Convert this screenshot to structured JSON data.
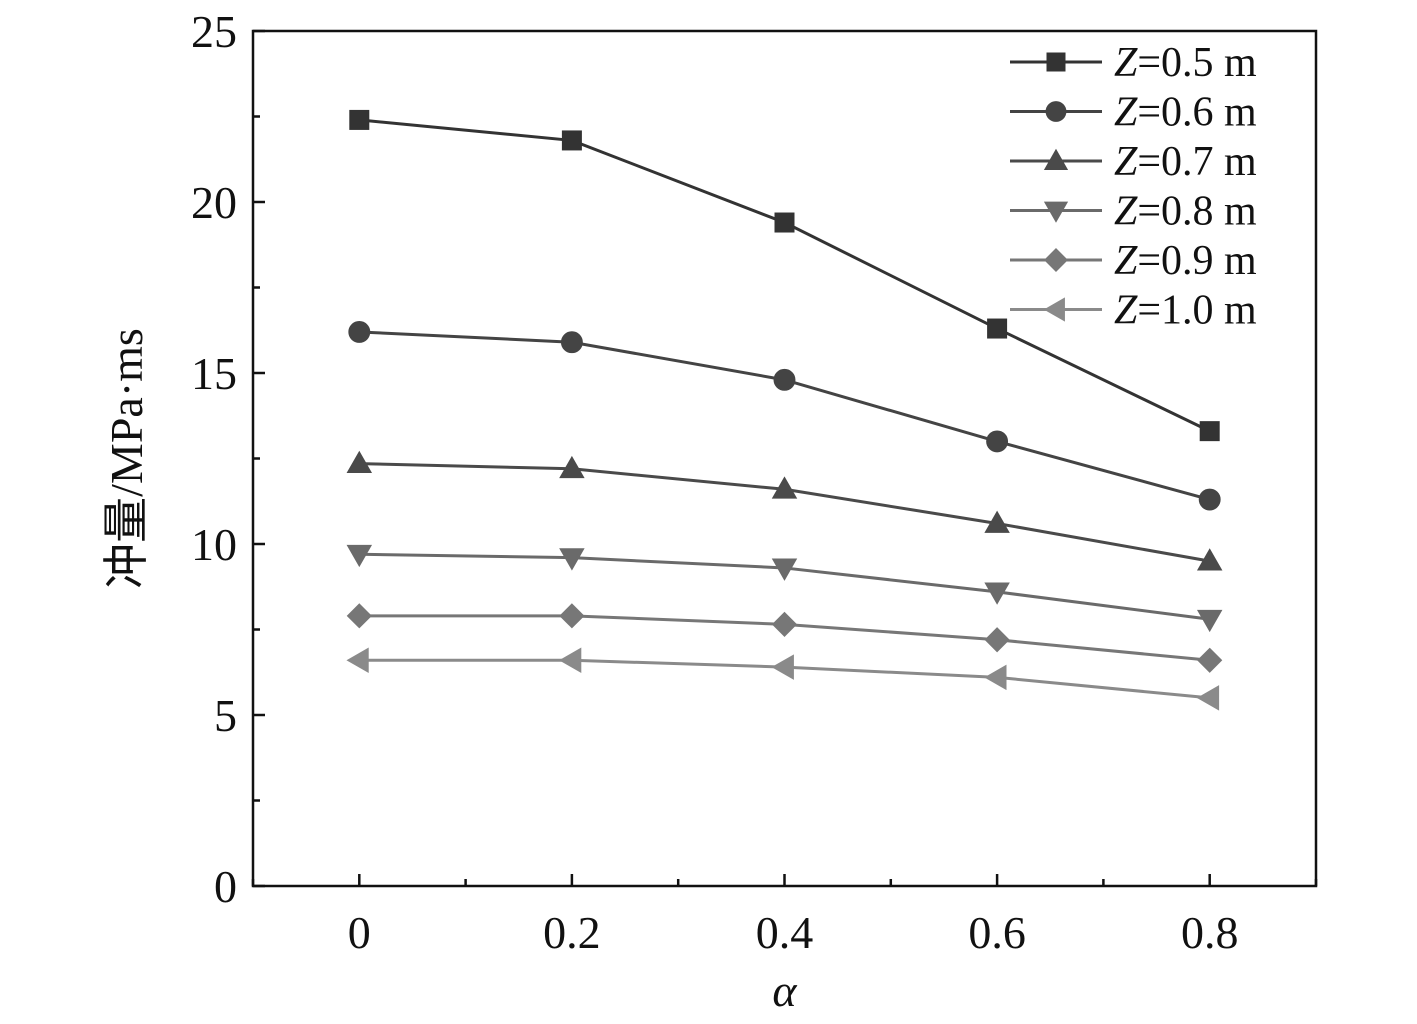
{
  "chart_data": {
    "type": "line",
    "title": "",
    "xlabel": "α",
    "ylabel": "冲量/MPa·ms",
    "x": [
      0,
      0.2,
      0.4,
      0.6,
      0.8
    ],
    "x_tick_labels": [
      "0",
      "0.2",
      "0.4",
      "0.6",
      "0.8"
    ],
    "y_tick_labels": [
      "0",
      "5",
      "10",
      "15",
      "20",
      "25"
    ],
    "xlim": [
      -0.1,
      0.9
    ],
    "ylim": [
      0,
      25
    ],
    "grid": false,
    "legend_position": "top-right",
    "series": [
      {
        "name": "Z=0.5 m",
        "legend_var": "Z",
        "legend_rest": "=0.5 m",
        "marker": "square",
        "color": "#333333",
        "values": [
          22.4,
          21.8,
          19.4,
          16.3,
          13.3
        ]
      },
      {
        "name": "Z=0.6 m",
        "legend_var": "Z",
        "legend_rest": "=0.6 m",
        "marker": "circle",
        "color": "#444444",
        "values": [
          16.2,
          15.9,
          14.8,
          13.0,
          11.3
        ]
      },
      {
        "name": "Z=0.7 m",
        "legend_var": "Z",
        "legend_rest": "=0.7 m",
        "marker": "triangle-up",
        "color": "#4a4a4a",
        "values": [
          12.35,
          12.2,
          11.6,
          10.6,
          9.5
        ]
      },
      {
        "name": "Z=0.8 m",
        "legend_var": "Z",
        "legend_rest": "=0.8 m",
        "marker": "triangle-down",
        "color": "#6a6a6a",
        "values": [
          9.7,
          9.6,
          9.3,
          8.6,
          7.8
        ]
      },
      {
        "name": "Z=0.9 m",
        "legend_var": "Z",
        "legend_rest": "=0.9 m",
        "marker": "diamond",
        "color": "#777777",
        "values": [
          7.9,
          7.9,
          7.65,
          7.2,
          6.6
        ]
      },
      {
        "name": "Z=1.0 m",
        "legend_var": "Z",
        "legend_rest": "=1.0 m",
        "marker": "triangle-left",
        "color": "#8a8a8a",
        "values": [
          6.6,
          6.6,
          6.4,
          6.1,
          5.5
        ]
      }
    ]
  }
}
